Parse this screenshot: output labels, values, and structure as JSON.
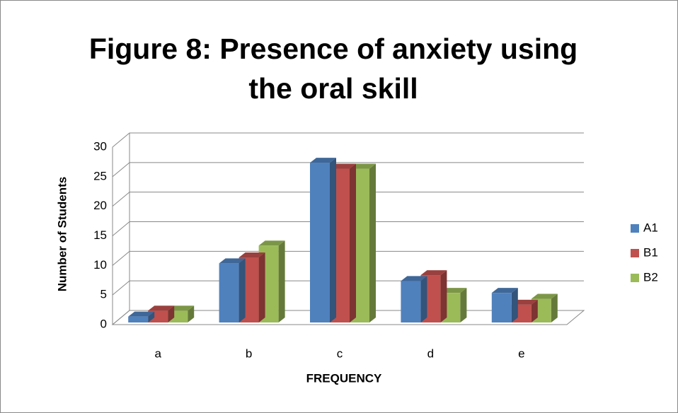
{
  "chart_data": {
    "type": "bar3d",
    "title": "Figure 8: Presence of anxiety using the oral skill",
    "x_label": "FREQUENCY",
    "y_label": "Number of Students",
    "categories": [
      "a",
      "b",
      "c",
      "d",
      "e"
    ],
    "series": [
      {
        "name": "A1",
        "color": "#4f81bd",
        "values": [
          1,
          10,
          27,
          7,
          5
        ]
      },
      {
        "name": "B1",
        "color": "#c0504d",
        "values": [
          2,
          11,
          26,
          8,
          3
        ]
      },
      {
        "name": "B2",
        "color": "#9bbb59",
        "values": [
          2,
          13,
          26,
          5,
          4
        ]
      }
    ],
    "ylim": [
      0,
      30
    ],
    "yticks": [
      0,
      5,
      10,
      15,
      20,
      25,
      30
    ],
    "grid": true,
    "legend": "right"
  }
}
